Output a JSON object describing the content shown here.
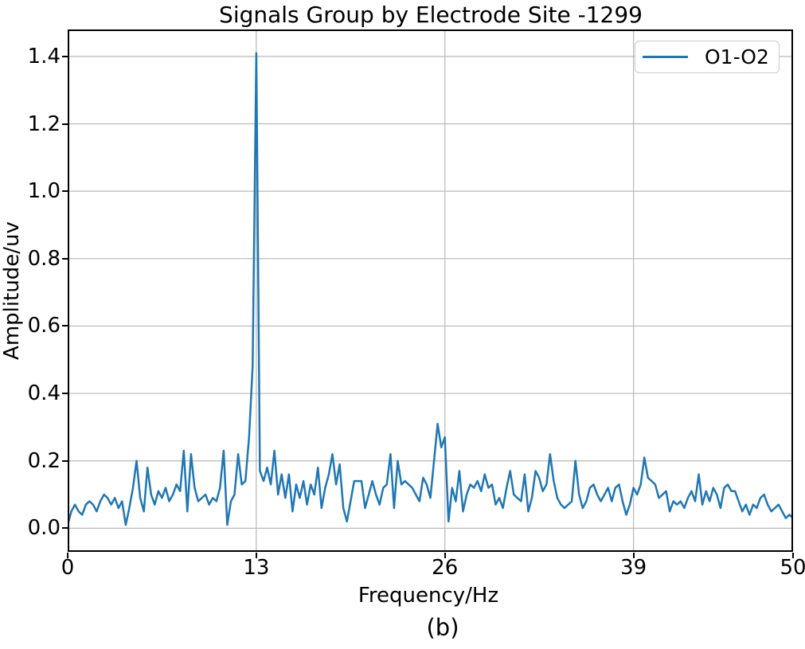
{
  "figure": {
    "caption": "(b)"
  },
  "colors": {
    "line": "#1f77b4",
    "grid": "#b9b9b9",
    "spine": "#000000",
    "background": "#ffffff",
    "legend_border": "#cccccc",
    "text": "#000000"
  },
  "chart_data": {
    "type": "line",
    "title": "Signals Group by Electrode Site -1299",
    "xlabel": "Frequency/Hz",
    "ylabel": "Amplitude/uv",
    "caption": "(b)",
    "xlim": [
      0,
      50
    ],
    "ylim": [
      -0.07,
      1.48
    ],
    "x_ticks": [
      0,
      13,
      26,
      39,
      50
    ],
    "x_tick_labels": [
      "0",
      "13",
      "26",
      "39",
      "50"
    ],
    "y_ticks": [
      0.0,
      0.2,
      0.4,
      0.6,
      0.8,
      1.0,
      1.2,
      1.4
    ],
    "y_tick_labels": [
      "0.0",
      "0.2",
      "0.4",
      "0.6",
      "0.8",
      "1.0",
      "1.2",
      "1.4"
    ],
    "grid": true,
    "legend": {
      "position": "upper right",
      "entries": [
        {
          "label": "O1-O2",
          "color": "#1f77b4"
        }
      ]
    },
    "peak": {
      "frequency_hz": 13,
      "amplitude_uv": 1.41
    },
    "series": [
      {
        "name": "O1-O2",
        "color": "#1f77b4",
        "x_start": 0,
        "x_step": 0.25,
        "values": [
          0.01,
          0.05,
          0.07,
          0.05,
          0.04,
          0.07,
          0.08,
          0.07,
          0.05,
          0.08,
          0.1,
          0.09,
          0.07,
          0.09,
          0.06,
          0.08,
          0.01,
          0.06,
          0.12,
          0.2,
          0.09,
          0.05,
          0.18,
          0.1,
          0.07,
          0.11,
          0.09,
          0.12,
          0.08,
          0.1,
          0.13,
          0.11,
          0.23,
          0.05,
          0.22,
          0.12,
          0.08,
          0.09,
          0.1,
          0.07,
          0.09,
          0.08,
          0.12,
          0.23,
          0.01,
          0.08,
          0.1,
          0.22,
          0.13,
          0.14,
          0.27,
          0.48,
          1.41,
          0.17,
          0.14,
          0.18,
          0.13,
          0.23,
          0.1,
          0.16,
          0.09,
          0.16,
          0.05,
          0.13,
          0.09,
          0.14,
          0.07,
          0.13,
          0.1,
          0.18,
          0.06,
          0.12,
          0.16,
          0.22,
          0.13,
          0.19,
          0.06,
          0.02,
          0.08,
          0.14,
          0.14,
          0.14,
          0.06,
          0.1,
          0.14,
          0.1,
          0.07,
          0.12,
          0.13,
          0.22,
          0.06,
          0.2,
          0.13,
          0.14,
          0.13,
          0.12,
          0.1,
          0.08,
          0.15,
          0.13,
          0.09,
          0.2,
          0.31,
          0.24,
          0.27,
          0.02,
          0.12,
          0.08,
          0.17,
          0.05,
          0.1,
          0.13,
          0.12,
          0.14,
          0.11,
          0.16,
          0.12,
          0.13,
          0.07,
          0.09,
          0.06,
          0.12,
          0.17,
          0.1,
          0.09,
          0.08,
          0.16,
          0.05,
          0.09,
          0.17,
          0.15,
          0.11,
          0.13,
          0.22,
          0.14,
          0.09,
          0.07,
          0.06,
          0.07,
          0.08,
          0.2,
          0.1,
          0.06,
          0.08,
          0.12,
          0.13,
          0.1,
          0.08,
          0.1,
          0.12,
          0.08,
          0.12,
          0.13,
          0.08,
          0.04,
          0.07,
          0.12,
          0.1,
          0.13,
          0.21,
          0.15,
          0.14,
          0.13,
          0.09,
          0.1,
          0.11,
          0.05,
          0.08,
          0.07,
          0.08,
          0.06,
          0.09,
          0.11,
          0.08,
          0.16,
          0.07,
          0.11,
          0.08,
          0.12,
          0.1,
          0.06,
          0.12,
          0.13,
          0.11,
          0.11,
          0.08,
          0.05,
          0.07,
          0.04,
          0.07,
          0.06,
          0.09,
          0.1,
          0.07,
          0.05,
          0.06,
          0.07,
          0.05,
          0.03,
          0.04,
          0.03
        ]
      }
    ]
  }
}
